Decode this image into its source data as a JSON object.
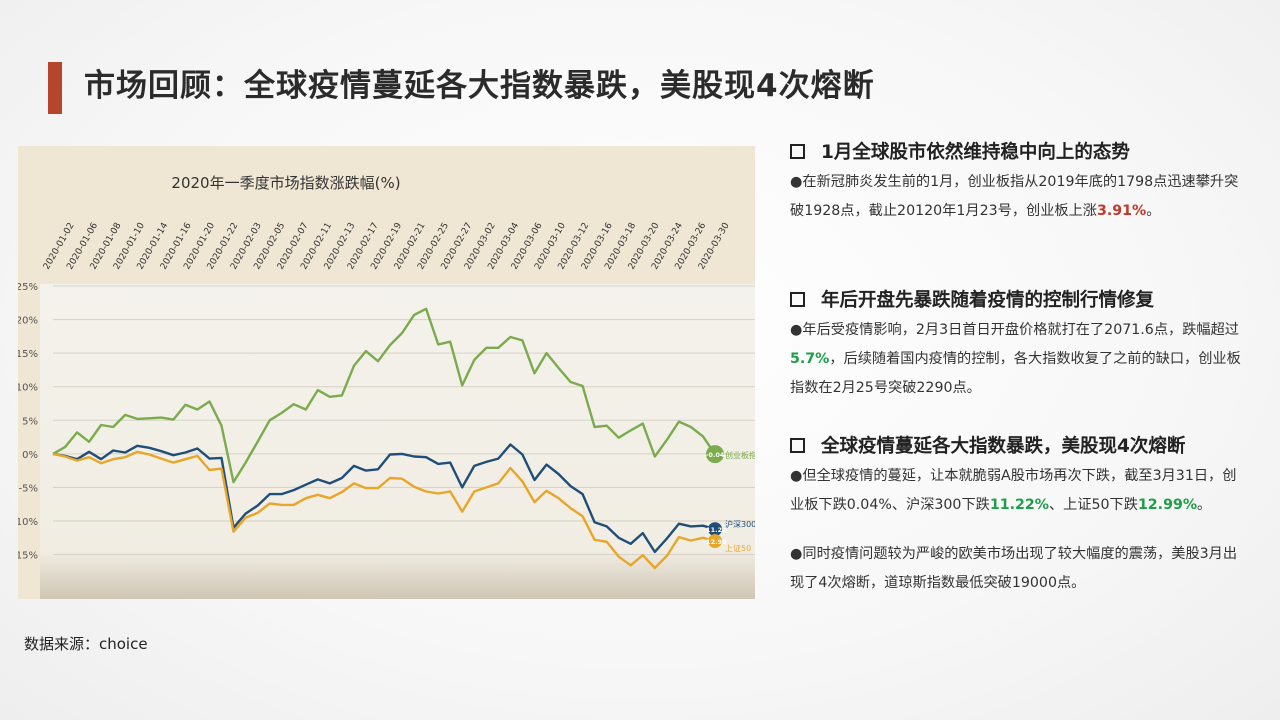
{
  "slide": {
    "title": "市场回顾：全球疫情蔓延各大指数暴跌，美股现4次熔断",
    "source": "数据来源：choice"
  },
  "sections": [
    {
      "heading": "1月全球股市依然维持稳中向上的态势",
      "p1": "●在新冠肺炎发生前的1月，创业板指从2019年底的1798点迅速攀升突破1928点，截止20120年1月23号，创业板上涨",
      "hl1": "3.91%",
      "p1b": "。"
    },
    {
      "heading": "年后开盘先暴跌随着疫情的控制行情修复",
      "p1": "●年后受疫情影响，2月3日首日开盘价格就打在了2071.6点，跌幅超过",
      "hl1": "5.7%",
      "p1b": "，后续随着国内疫情的控制，各大指数收复了之前的缺口，创业板指数在2月25号突破2290点。"
    },
    {
      "heading": "全球疫情蔓延各大指数暴跌，美股现4次熔断",
      "p1": "●但全球疫情的蔓延，让本就脆弱A股市场再次下跌，截至3月31日，创业板下跌0.04%、沪深300下跌",
      "hl1": "11.22%",
      "p1b": "、上证50下跌",
      "hl2": "12.99%",
      "p1c": "。",
      "p2": "●同时疫情问题较为严峻的欧美市场出现了较大幅度的震荡，美股3月出现了4次熔断，道琼斯指数最低突破19000点。"
    }
  ],
  "chart_data": {
    "type": "line",
    "title": "2020年一季度市场指数涨跌幅(%)",
    "ylabel": "",
    "ylim": [
      -17,
      25
    ],
    "y_ticks": [
      "25%",
      "20%",
      "15%",
      "10%",
      "5%",
      "0%",
      "-5%",
      "-10%",
      "-15%"
    ],
    "y_tick_values": [
      25,
      20,
      15,
      10,
      5,
      0,
      -5,
      -10,
      -15
    ],
    "x_tick_labels": [
      "2020-01-02",
      "2020-01-06",
      "2020-01-08",
      "2020-01-10",
      "2020-01-14",
      "2020-01-16",
      "2020-01-20",
      "2020-01-22",
      "2020-02-03",
      "2020-02-05",
      "2020-02-07",
      "2020-02-11",
      "2020-02-13",
      "2020-02-17",
      "2020-02-19",
      "2020-02-21",
      "2020-02-25",
      "2020-02-27",
      "2020-03-02",
      "2020-03-04",
      "2020-03-06",
      "2020-03-10",
      "2020-03-12",
      "2020-03-16",
      "2020-03-18",
      "2020-03-20",
      "2020-03-24",
      "2020-03-26",
      "2020-03-30"
    ],
    "series": [
      {
        "name": "创业板指",
        "end_label": "-0.04",
        "color": "#7bab4c",
        "values": [
          0.0,
          1.0,
          3.2,
          1.8,
          4.3,
          4.0,
          5.8,
          5.2,
          5.3,
          5.4,
          5.1,
          7.3,
          6.6,
          7.8,
          4.2,
          -4.2,
          -1.3,
          1.8,
          5.0,
          6.1,
          7.4,
          6.6,
          9.5,
          8.5,
          8.7,
          13.1,
          15.3,
          13.8,
          16.2,
          18.0,
          20.7,
          21.6,
          16.3,
          16.7,
          10.2,
          14.0,
          15.8,
          15.8,
          17.4,
          16.9,
          12.0,
          15.0,
          12.8,
          10.7,
          10.1,
          4.0,
          4.2,
          2.4,
          3.5,
          4.5,
          -0.4,
          2.1,
          4.8,
          4.0,
          2.6,
          -0.04
        ]
      },
      {
        "name": "沪深300",
        "end_label": "-11.22",
        "color": "#1f4e79",
        "values": [
          0.0,
          -0.3,
          -0.8,
          0.3,
          -0.8,
          0.5,
          0.2,
          1.2,
          0.9,
          0.4,
          -0.2,
          0.2,
          0.8,
          -0.7,
          -0.6,
          -11.0,
          -8.9,
          -7.7,
          -6.0,
          -6.0,
          -5.4,
          -4.6,
          -3.8,
          -4.4,
          -3.6,
          -1.8,
          -2.5,
          -2.3,
          -0.1,
          0.0,
          -0.4,
          -0.5,
          -1.5,
          -1.3,
          -5.0,
          -1.8,
          -1.2,
          -0.7,
          1.4,
          -0.1,
          -3.9,
          -1.6,
          -3.0,
          -4.8,
          -6.0,
          -10.2,
          -10.8,
          -12.5,
          -13.4,
          -11.8,
          -14.6,
          -12.6,
          -10.4,
          -10.8,
          -10.7,
          -11.22
        ]
      },
      {
        "name": "上证50",
        "end_label": "-12.99",
        "color": "#e8a629",
        "values": [
          0.0,
          -0.4,
          -1.0,
          -0.5,
          -1.4,
          -0.8,
          -0.5,
          0.3,
          -0.1,
          -0.7,
          -1.3,
          -0.8,
          -0.3,
          -2.4,
          -2.2,
          -11.6,
          -9.5,
          -8.8,
          -7.4,
          -7.6,
          -7.6,
          -6.6,
          -6.1,
          -6.6,
          -5.7,
          -4.4,
          -5.1,
          -5.1,
          -3.6,
          -3.7,
          -4.9,
          -5.6,
          -5.9,
          -5.6,
          -8.6,
          -5.6,
          -5.0,
          -4.4,
          -2.1,
          -4.1,
          -7.2,
          -5.5,
          -6.6,
          -8.1,
          -9.3,
          -12.8,
          -13.1,
          -15.3,
          -16.6,
          -15.1,
          -17.0,
          -15.2,
          -12.4,
          -12.9,
          -12.5,
          -12.99
        ]
      }
    ]
  }
}
